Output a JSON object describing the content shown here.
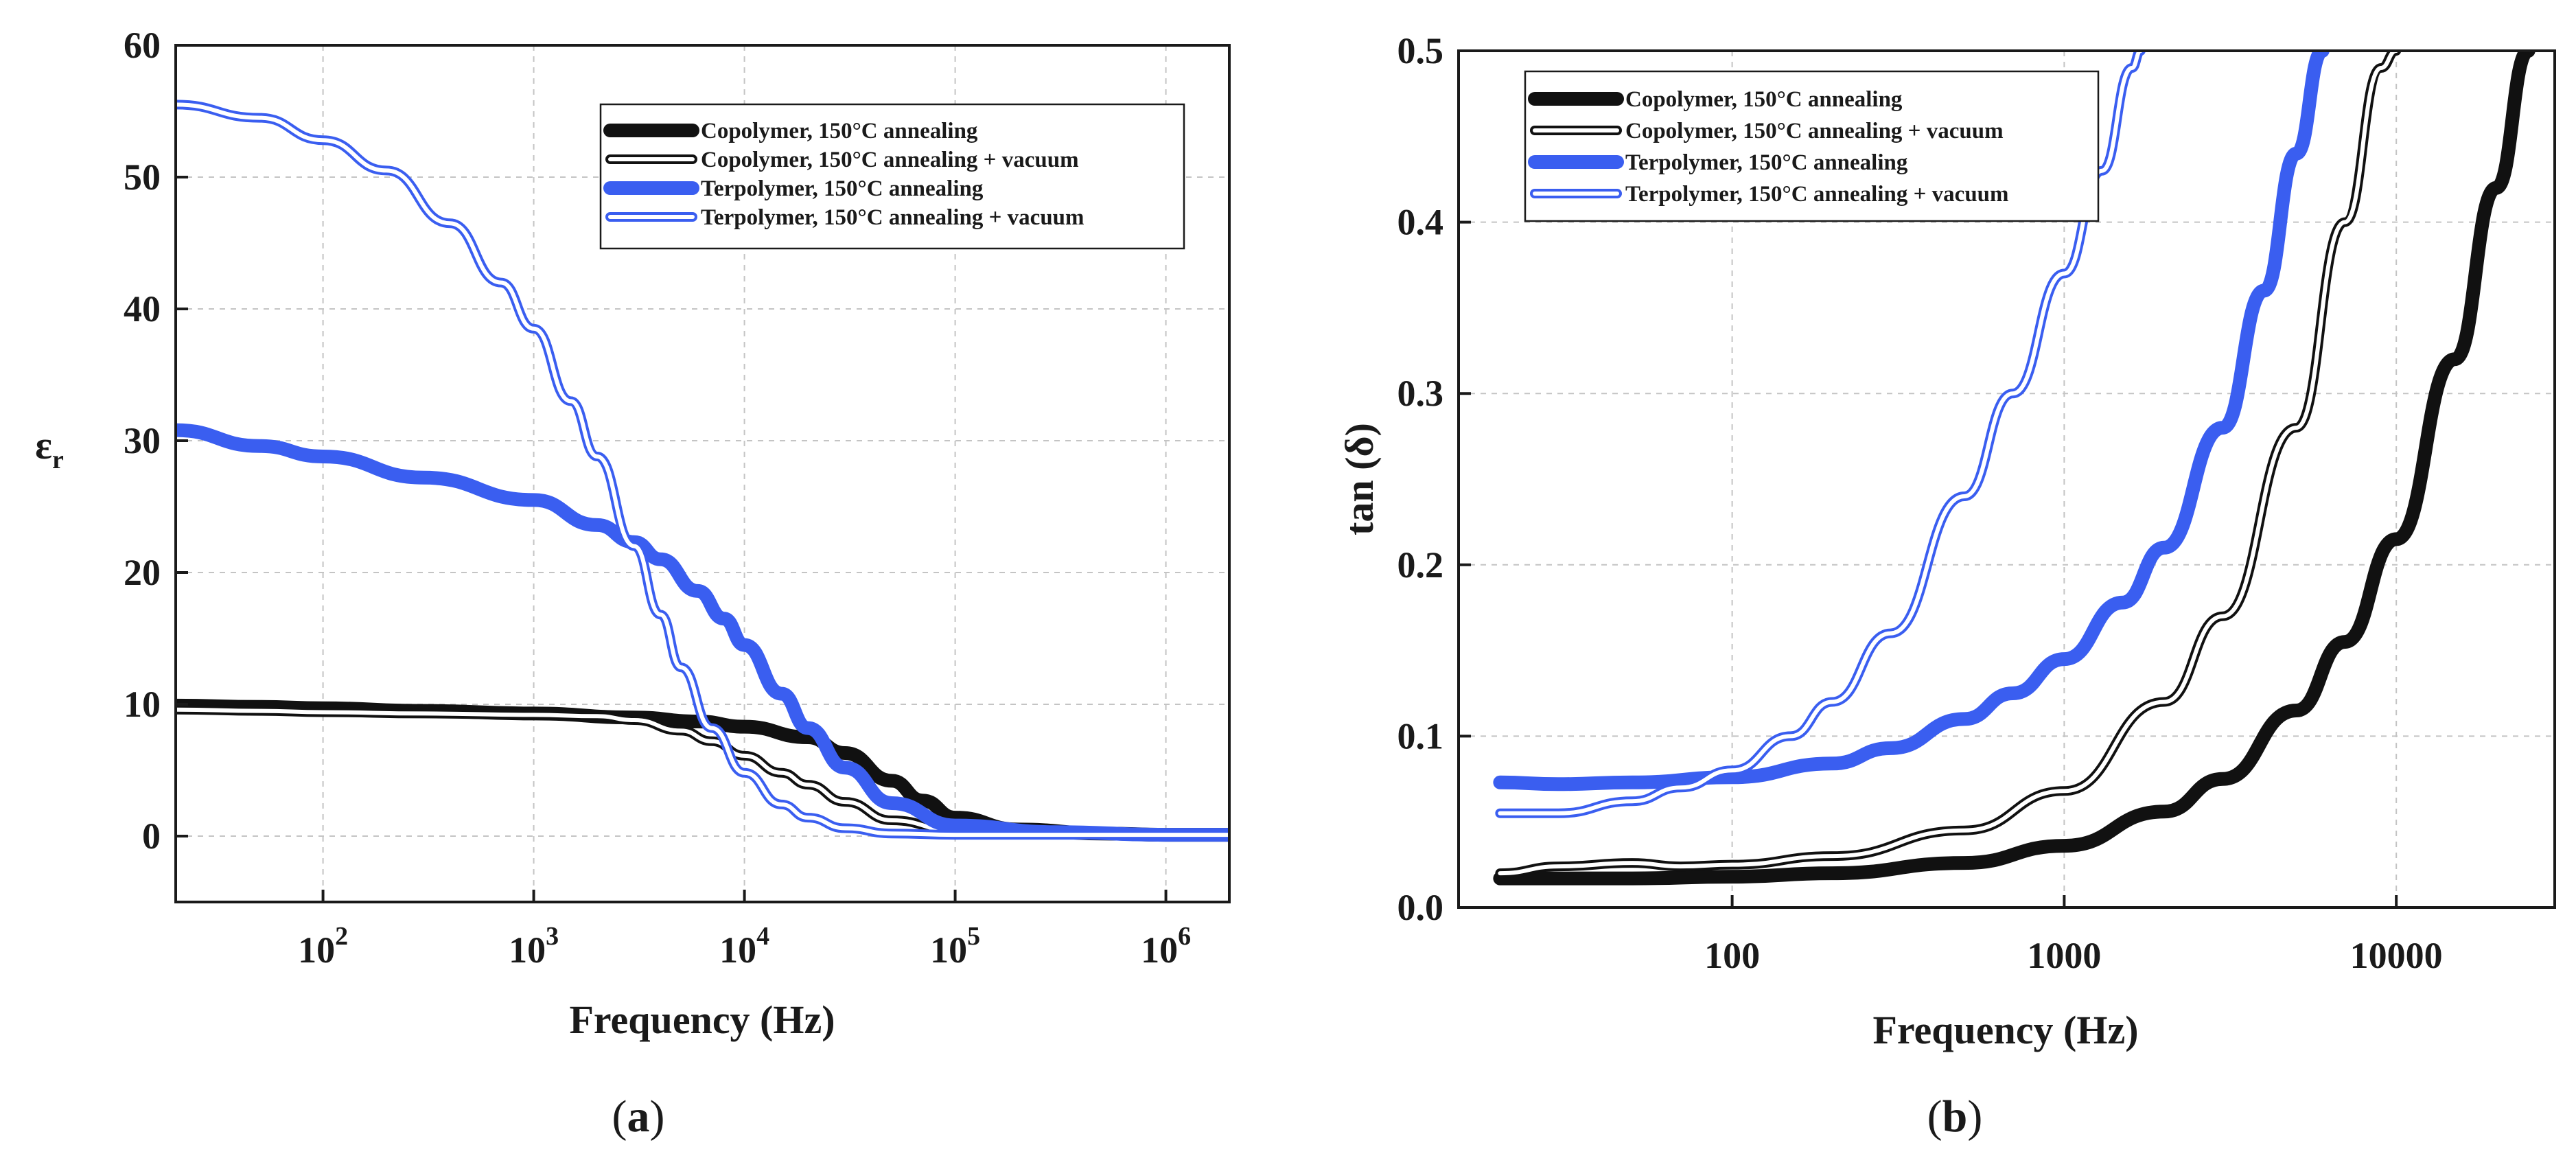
{
  "colors": {
    "copolymer": "#111111",
    "terpolymer": "#3a5ef0"
  },
  "chart_data": [
    {
      "id": "a",
      "type": "line",
      "panel_label": "(a)",
      "panel_letter": "a",
      "xscale": "log",
      "xlim": [
        20,
        2000000
      ],
      "ylim": [
        -5,
        60
      ],
      "xlabel": "Frequency (Hz)",
      "ylabel": "ε",
      "ylabel_sub": "r",
      "grid": true,
      "legend_position": "top-right",
      "x_ticks": [
        {
          "value": 100,
          "base": "10",
          "exp": "2"
        },
        {
          "value": 1000,
          "base": "10",
          "exp": "3"
        },
        {
          "value": 10000,
          "base": "10",
          "exp": "4"
        },
        {
          "value": 100000,
          "base": "10",
          "exp": "5"
        },
        {
          "value": 1000000,
          "base": "10",
          "exp": "6"
        }
      ],
      "y_ticks": [
        {
          "value": 0,
          "label": "0"
        },
        {
          "value": 10,
          "label": "10"
        },
        {
          "value": 20,
          "label": "20"
        },
        {
          "value": 30,
          "label": "30"
        },
        {
          "value": 40,
          "label": "40"
        },
        {
          "value": 50,
          "label": "50"
        },
        {
          "value": 60,
          "label": "60"
        }
      ],
      "series": [
        {
          "name": "Copolymer, 150°C annealing",
          "style": "solid",
          "x": [
            20,
            50,
            100,
            300,
            1000,
            3000,
            6000,
            10000,
            20000,
            30000,
            50000,
            70000,
            100000,
            200000,
            500000,
            1000000,
            2000000
          ],
          "y": [
            9.9,
            9.8,
            9.7,
            9.5,
            9.3,
            9.0,
            8.7,
            8.3,
            7.5,
            6.3,
            4.2,
            2.7,
            1.4,
            0.5,
            0.2,
            0.1,
            0.1
          ]
        },
        {
          "name": "Copolymer, 150°C annealing + vacuum",
          "style": "double",
          "x": [
            20,
            50,
            100,
            300,
            1000,
            2000,
            3000,
            5000,
            7000,
            10000,
            15000,
            20000,
            30000,
            50000,
            100000,
            200000,
            1000000,
            2000000
          ],
          "y": [
            9.6,
            9.5,
            9.4,
            9.3,
            9.2,
            9.1,
            8.8,
            8.0,
            7.2,
            6.1,
            4.8,
            3.9,
            2.6,
            1.2,
            0.4,
            0.2,
            0.1,
            0.1
          ]
        },
        {
          "name": "Terpolymer, 150°C annealing",
          "style": "solid",
          "x": [
            20,
            50,
            100,
            300,
            1000,
            2000,
            3000,
            4000,
            6000,
            8000,
            10000,
            15000,
            20000,
            30000,
            50000,
            100000,
            300000,
            1000000,
            2000000
          ],
          "y": [
            30.8,
            29.6,
            28.8,
            27.2,
            25.5,
            23.6,
            22.3,
            21.0,
            18.6,
            16.5,
            14.5,
            10.8,
            8.2,
            5.2,
            2.5,
            0.8,
            0.3,
            0.1,
            0.1
          ]
        },
        {
          "name": "Terpolymer, 150°C annealing + vacuum",
          "style": "double",
          "x": [
            20,
            50,
            100,
            200,
            400,
            700,
            1000,
            1500,
            2000,
            3000,
            4000,
            5000,
            7000,
            10000,
            15000,
            20000,
            30000,
            50000,
            100000,
            300000,
            2000000
          ],
          "y": [
            55.5,
            54.5,
            52.8,
            50.5,
            46.5,
            42.0,
            38.5,
            33.0,
            28.8,
            22.0,
            16.8,
            12.8,
            8.2,
            4.8,
            2.4,
            1.4,
            0.6,
            0.2,
            0.1,
            0.1,
            0.1
          ]
        }
      ]
    },
    {
      "id": "b",
      "type": "line",
      "panel_label": "(b)",
      "panel_letter": "b",
      "xscale": "log",
      "xlim": [
        15,
        30000
      ],
      "ylim": [
        0,
        0.5
      ],
      "xlabel": "Frequency (Hz)",
      "ylabel": "tan (δ)",
      "grid": true,
      "legend_position": "top-left",
      "x_ticks": [
        {
          "value": 100,
          "label": "100"
        },
        {
          "value": 1000,
          "label": "1000"
        },
        {
          "value": 10000,
          "label": "10000"
        }
      ],
      "y_ticks": [
        {
          "value": 0,
          "label": "0.0"
        },
        {
          "value": 0.1,
          "label": "0.1"
        },
        {
          "value": 0.2,
          "label": "0.2"
        },
        {
          "value": 0.3,
          "label": "0.3"
        },
        {
          "value": 0.4,
          "label": "0.4"
        },
        {
          "value": 0.5,
          "label": "0.5"
        }
      ],
      "series": [
        {
          "name": "Copolymer, 150°C annealing",
          "style": "solid",
          "x": [
            20,
            50,
            100,
            200,
            500,
            1000,
            2000,
            3000,
            5000,
            7000,
            10000,
            15000,
            20000,
            25000
          ],
          "y": [
            0.017,
            0.017,
            0.018,
            0.02,
            0.026,
            0.036,
            0.056,
            0.075,
            0.115,
            0.155,
            0.215,
            0.32,
            0.42,
            0.5
          ]
        },
        {
          "name": "Copolymer, 150°C annealing + vacuum",
          "style": "double",
          "x": [
            20,
            30,
            50,
            70,
            100,
            200,
            500,
            1000,
            2000,
            3000,
            5000,
            7000,
            9000,
            10000
          ],
          "y": [
            0.02,
            0.024,
            0.026,
            0.024,
            0.025,
            0.03,
            0.045,
            0.068,
            0.12,
            0.17,
            0.28,
            0.4,
            0.49,
            0.5
          ]
        },
        {
          "name": "Terpolymer, 150°C annealing",
          "style": "solid",
          "x": [
            20,
            30,
            50,
            100,
            200,
            300,
            500,
            700,
            1000,
            1500,
            2000,
            3000,
            4000,
            5000,
            6000
          ],
          "y": [
            0.073,
            0.072,
            0.073,
            0.076,
            0.084,
            0.093,
            0.11,
            0.125,
            0.145,
            0.178,
            0.21,
            0.28,
            0.36,
            0.44,
            0.5
          ]
        },
        {
          "name": "Terpolymer, 150°C annealing + vacuum",
          "style": "double",
          "x": [
            20,
            30,
            50,
            70,
            100,
            150,
            200,
            300,
            500,
            700,
            1000,
            1300,
            1600,
            1700
          ],
          "y": [
            0.055,
            0.055,
            0.062,
            0.07,
            0.08,
            0.1,
            0.12,
            0.16,
            0.24,
            0.3,
            0.37,
            0.43,
            0.49,
            0.5
          ]
        }
      ]
    }
  ]
}
